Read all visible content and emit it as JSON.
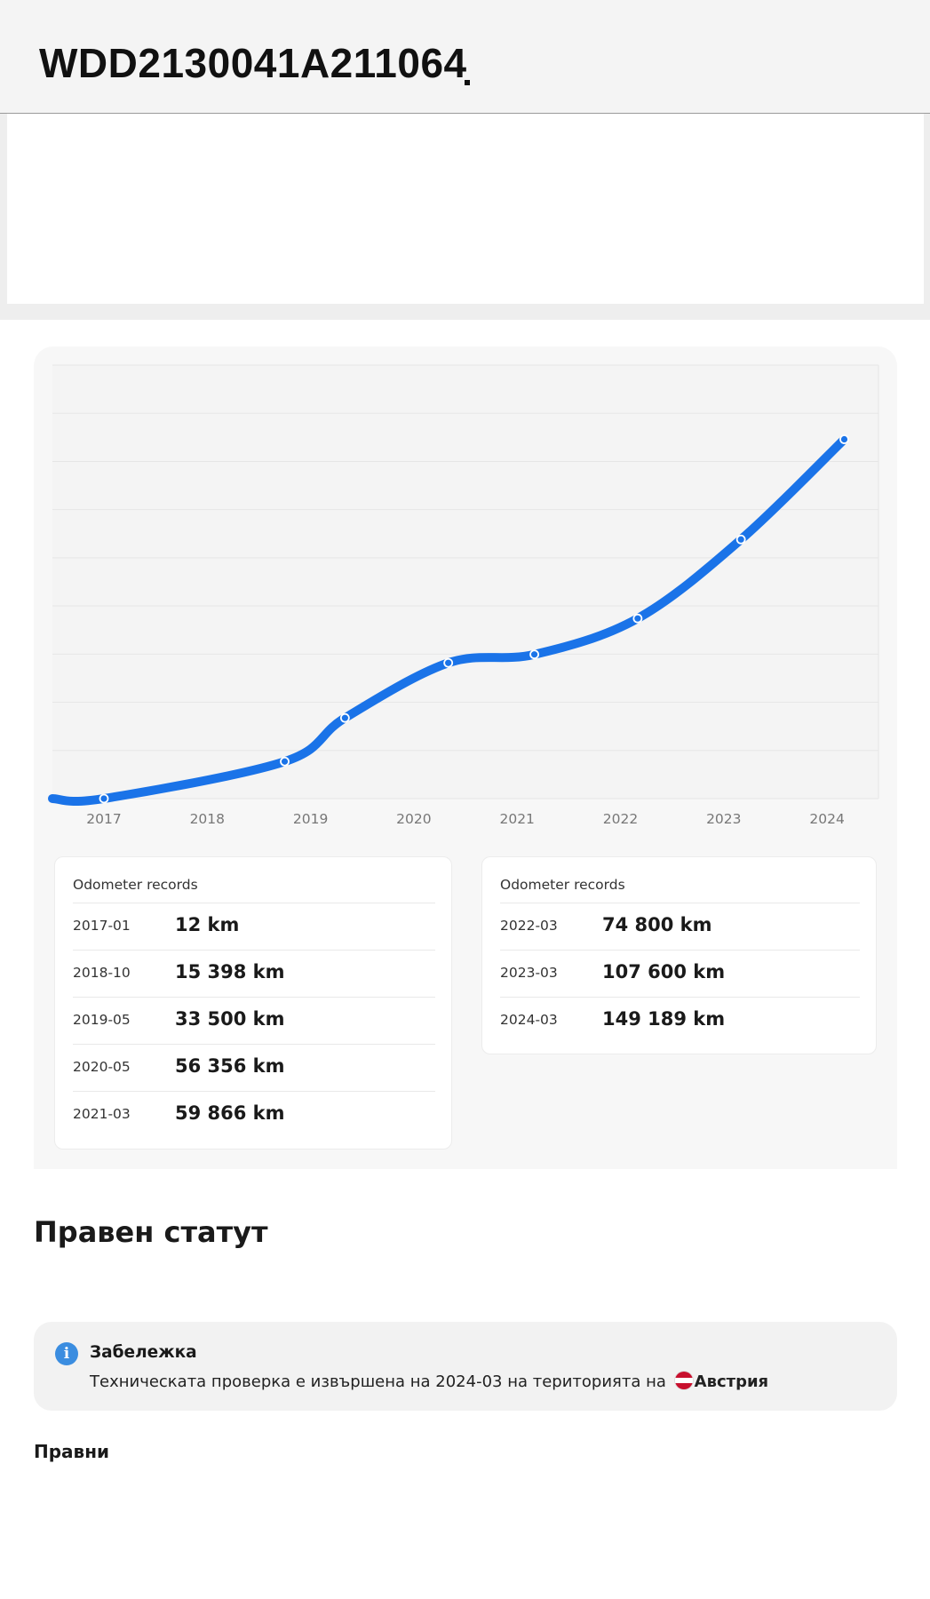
{
  "header": {
    "vin": "WDD2130041A211064"
  },
  "chart_data": {
    "type": "line",
    "x": [
      "2017-01",
      "2018-10",
      "2019-05",
      "2020-05",
      "2021-03",
      "2022-03",
      "2023-03",
      "2024-03"
    ],
    "values": [
      12,
      15398,
      33500,
      56356,
      59866,
      74800,
      107600,
      149189
    ],
    "x_ticks": [
      "2017",
      "2018",
      "2019",
      "2020",
      "2021",
      "2022",
      "2023",
      "2024"
    ],
    "ylim": [
      0,
      180000
    ],
    "grid": true,
    "line_color": "#1a73e8",
    "title": "",
    "xlabel": "",
    "ylabel": ""
  },
  "odometer": {
    "left_title": "Odometer records",
    "right_title": "Odometer records",
    "left_rows": [
      {
        "date": "2017-01",
        "km": "12 km"
      },
      {
        "date": "2018-10",
        "km": "15 398 km"
      },
      {
        "date": "2019-05",
        "km": "33 500 km"
      },
      {
        "date": "2020-05",
        "km": "56 356 km"
      },
      {
        "date": "2021-03",
        "km": "59 866 km"
      }
    ],
    "right_rows": [
      {
        "date": "2022-03",
        "km": "74 800 km"
      },
      {
        "date": "2023-03",
        "km": "107 600 km"
      },
      {
        "date": "2024-03",
        "km": "149 189 km"
      }
    ]
  },
  "legal": {
    "title": "Правен статут",
    "note_title": "Забележка",
    "note_text": "Техническата проверка е извършена на 2024-03 на територията на",
    "country": "Австрия",
    "flag_icon": "austria-flag-icon",
    "info_icon": "info-icon",
    "info_color": "#3b8de0",
    "subheading": "Правни"
  }
}
